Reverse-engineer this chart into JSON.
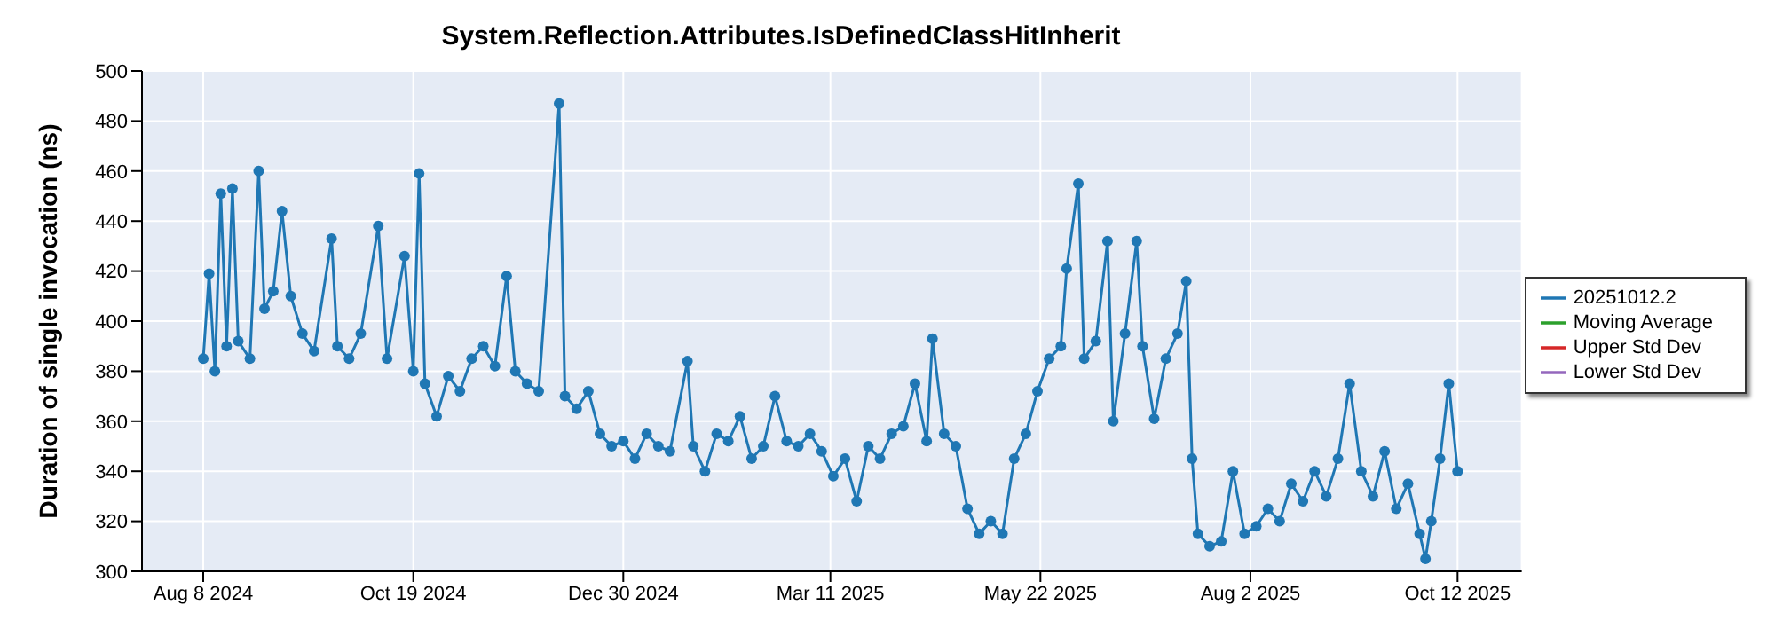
{
  "chart_data": {
    "type": "line",
    "title": "System.Reflection.Attributes.IsDefinedClassHitInherit",
    "ylabel": "Duration of single invocation (ns)",
    "x": [
      "2024-08-08",
      "2024-08-10",
      "2024-08-12",
      "2024-08-14",
      "2024-08-16",
      "2024-08-18",
      "2024-08-20",
      "2024-08-24",
      "2024-08-27",
      "2024-08-29",
      "2024-09-01",
      "2024-09-04",
      "2024-09-07",
      "2024-09-11",
      "2024-09-15",
      "2024-09-21",
      "2024-09-23",
      "2024-09-27",
      "2024-10-01",
      "2024-10-07",
      "2024-10-10",
      "2024-10-16",
      "2024-10-19",
      "2024-10-21",
      "2024-10-23",
      "2024-10-27",
      "2024-10-31",
      "2024-11-04",
      "2024-11-08",
      "2024-11-12",
      "2024-11-16",
      "2024-11-20",
      "2024-11-23",
      "2024-11-27",
      "2024-12-01",
      "2024-12-08",
      "2024-12-10",
      "2024-12-14",
      "2024-12-18",
      "2024-12-22",
      "2024-12-26",
      "2024-12-30",
      "2025-01-03",
      "2025-01-07",
      "2025-01-11",
      "2025-01-15",
      "2025-01-21",
      "2025-01-23",
      "2025-01-27",
      "2025-01-31",
      "2025-02-04",
      "2025-02-08",
      "2025-02-12",
      "2025-02-16",
      "2025-02-20",
      "2025-02-24",
      "2025-02-28",
      "2025-03-04",
      "2025-03-08",
      "2025-03-12",
      "2025-03-16",
      "2025-03-20",
      "2025-03-24",
      "2025-03-28",
      "2025-04-01",
      "2025-04-05",
      "2025-04-09",
      "2025-04-13",
      "2025-04-15",
      "2025-04-19",
      "2025-04-23",
      "2025-04-27",
      "2025-05-01",
      "2025-05-05",
      "2025-05-09",
      "2025-05-13",
      "2025-05-17",
      "2025-05-21",
      "2025-05-25",
      "2025-05-29",
      "2025-05-31",
      "2025-06-04",
      "2025-06-06",
      "2025-06-10",
      "2025-06-14",
      "2025-06-16",
      "2025-06-20",
      "2025-06-24",
      "2025-06-26",
      "2025-06-30",
      "2025-07-04",
      "2025-07-08",
      "2025-07-11",
      "2025-07-13",
      "2025-07-15",
      "2025-07-19",
      "2025-07-23",
      "2025-07-27",
      "2025-07-31",
      "2025-08-04",
      "2025-08-08",
      "2025-08-12",
      "2025-08-16",
      "2025-08-20",
      "2025-08-24",
      "2025-08-28",
      "2025-09-01",
      "2025-09-05",
      "2025-09-09",
      "2025-09-13",
      "2025-09-17",
      "2025-09-21",
      "2025-09-25",
      "2025-09-29",
      "2025-10-01",
      "2025-10-03",
      "2025-10-06",
      "2025-10-09",
      "2025-10-12"
    ],
    "series": [
      {
        "name": "20251012.2",
        "color": "#1f77b4",
        "values": [
          385,
          419,
          380,
          451,
          390,
          453,
          392,
          385,
          460,
          405,
          412,
          444,
          410,
          395,
          388,
          433,
          390,
          385,
          395,
          438,
          385,
          426,
          380,
          459,
          375,
          362,
          378,
          372,
          385,
          390,
          382,
          418,
          380,
          375,
          372,
          487,
          370,
          365,
          372,
          355,
          350,
          352,
          345,
          355,
          350,
          348,
          384,
          350,
          340,
          355,
          352,
          362,
          345,
          350,
          370,
          352,
          350,
          355,
          348,
          338,
          345,
          328,
          350,
          345,
          355,
          358,
          375,
          352,
          393,
          355,
          350,
          325,
          315,
          320,
          315,
          345,
          355,
          372,
          385,
          390,
          421,
          455,
          385,
          392,
          432,
          360,
          395,
          432,
          390,
          361,
          385,
          395,
          416,
          345,
          315,
          310,
          312,
          340,
          315,
          318,
          325,
          320,
          335,
          328,
          340,
          330,
          345,
          375,
          340,
          330,
          348,
          325,
          335,
          315,
          305,
          320,
          345,
          375,
          340
        ]
      },
      {
        "name": "Moving Average",
        "color": "#2ca02c",
        "values": [
          null,
          null,
          null,
          null,
          null,
          null,
          null,
          null,
          null,
          null,
          null,
          null,
          null,
          null,
          null,
          null,
          null,
          null,
          null,
          null,
          null,
          null,
          null,
          null,
          null,
          null,
          null,
          null,
          null,
          null,
          null,
          null,
          null,
          null,
          null,
          null,
          null,
          null,
          null,
          null,
          null,
          null,
          null,
          null,
          null,
          null,
          null,
          null,
          null,
          null,
          null,
          null,
          null,
          null,
          null,
          null,
          null,
          null,
          null,
          null,
          null,
          null,
          null,
          null,
          null,
          null,
          null,
          null,
          null,
          null,
          null,
          null,
          null,
          null,
          null,
          null,
          null,
          null,
          null,
          null,
          null,
          null,
          null,
          null,
          null,
          null,
          null,
          null,
          null,
          null,
          null,
          null,
          null,
          null,
          null,
          null,
          null,
          null,
          null,
          null,
          null,
          null,
          null,
          null,
          null,
          null,
          null,
          null,
          null,
          null,
          null,
          null,
          null,
          null,
          null,
          null,
          null,
          null,
          null
        ]
      },
      {
        "name": "Upper Std Dev",
        "color": "#d62728",
        "values": [
          null,
          null,
          null,
          null,
          null,
          null,
          null,
          null,
          null,
          null,
          null,
          null,
          null,
          null,
          null,
          null,
          null,
          null,
          null,
          null,
          null,
          null,
          null,
          null,
          null,
          null,
          null,
          null,
          null,
          null,
          null,
          null,
          null,
          null,
          null,
          null,
          null,
          null,
          null,
          null,
          null,
          null,
          null,
          null,
          null,
          null,
          null,
          null,
          null,
          null,
          null,
          null,
          null,
          null,
          null,
          null,
          null,
          null,
          null,
          null,
          null,
          null,
          null,
          null,
          null,
          null,
          null,
          null,
          null,
          null,
          null,
          null,
          null,
          null,
          null,
          null,
          null,
          null,
          null,
          null,
          null,
          null,
          null,
          null,
          null,
          null,
          null,
          null,
          null,
          null,
          null,
          null,
          null,
          null,
          null,
          null,
          null,
          null,
          null,
          null,
          null,
          null,
          null,
          null,
          null,
          null,
          null,
          null,
          null,
          null,
          null,
          null,
          null,
          null,
          null,
          null,
          null,
          null,
          null
        ]
      },
      {
        "name": "Lower Std Dev",
        "color": "#9467bd",
        "values": [
          null,
          null,
          null,
          null,
          null,
          null,
          null,
          null,
          null,
          null,
          null,
          null,
          null,
          null,
          null,
          null,
          null,
          null,
          null,
          null,
          null,
          null,
          null,
          null,
          null,
          null,
          null,
          null,
          null,
          null,
          null,
          null,
          null,
          null,
          null,
          null,
          null,
          null,
          null,
          null,
          null,
          null,
          null,
          null,
          null,
          null,
          null,
          null,
          null,
          null,
          null,
          null,
          null,
          null,
          null,
          null,
          null,
          null,
          null,
          null,
          null,
          null,
          null,
          null,
          null,
          null,
          null,
          null,
          null,
          null,
          null,
          null,
          null,
          null,
          null,
          null,
          null,
          null,
          null,
          null,
          null,
          null,
          null,
          null,
          null,
          null,
          null,
          null,
          null,
          null,
          null,
          null,
          null,
          null,
          null,
          null,
          null,
          null,
          null,
          null,
          null,
          null,
          null,
          null,
          null,
          null,
          null,
          null,
          null,
          null,
          null,
          null,
          null,
          null,
          null,
          null,
          null,
          null,
          null
        ]
      }
    ],
    "xlim": [
      "2024-07-18",
      "2025-11-03"
    ],
    "xticks": [
      {
        "value": "2024-08-08",
        "label": "Aug 8 2024"
      },
      {
        "value": "2024-10-19",
        "label": "Oct 19 2024"
      },
      {
        "value": "2024-12-30",
        "label": "Dec 30 2024"
      },
      {
        "value": "2025-03-11",
        "label": "Mar 11 2025"
      },
      {
        "value": "2025-05-22",
        "label": "May 22 2025"
      },
      {
        "value": "2025-08-02",
        "label": "Aug 2 2025"
      },
      {
        "value": "2025-10-12",
        "label": "Oct 12 2025"
      }
    ],
    "ylim": [
      300,
      500
    ],
    "yticks": [
      300,
      320,
      340,
      360,
      380,
      400,
      420,
      440,
      460,
      480,
      500
    ],
    "grid": true,
    "legend": "right",
    "marker": "circle",
    "line_style": "solid"
  }
}
